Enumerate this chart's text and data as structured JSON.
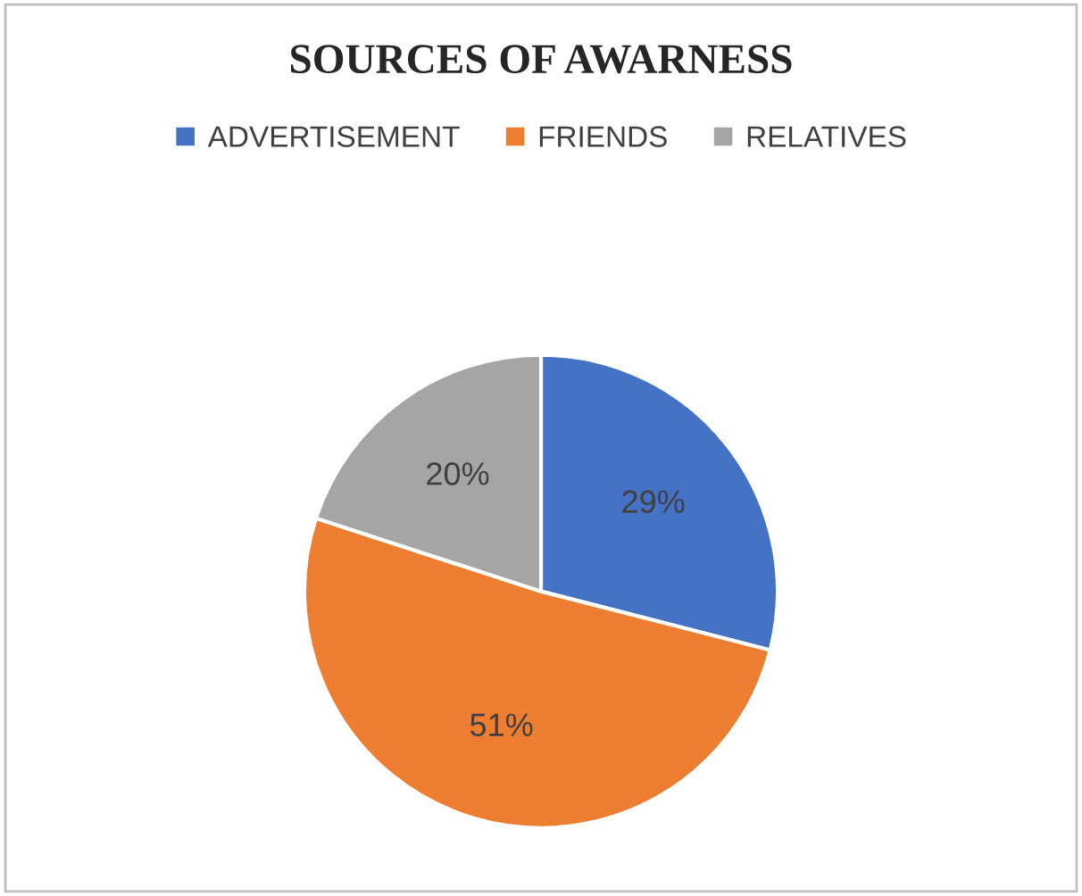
{
  "chart_data": {
    "type": "pie",
    "title": "SOURCES OF AWARNESS",
    "categories": [
      "ADVERTISEMENT",
      "FRIENDS",
      "RELATIVES"
    ],
    "values": [
      29,
      51,
      20
    ],
    "colors": [
      "#4472c4",
      "#ed7d31",
      "#a5a5a5"
    ],
    "value_labels": [
      "29%",
      "51%",
      "20%"
    ],
    "legend": "top"
  }
}
